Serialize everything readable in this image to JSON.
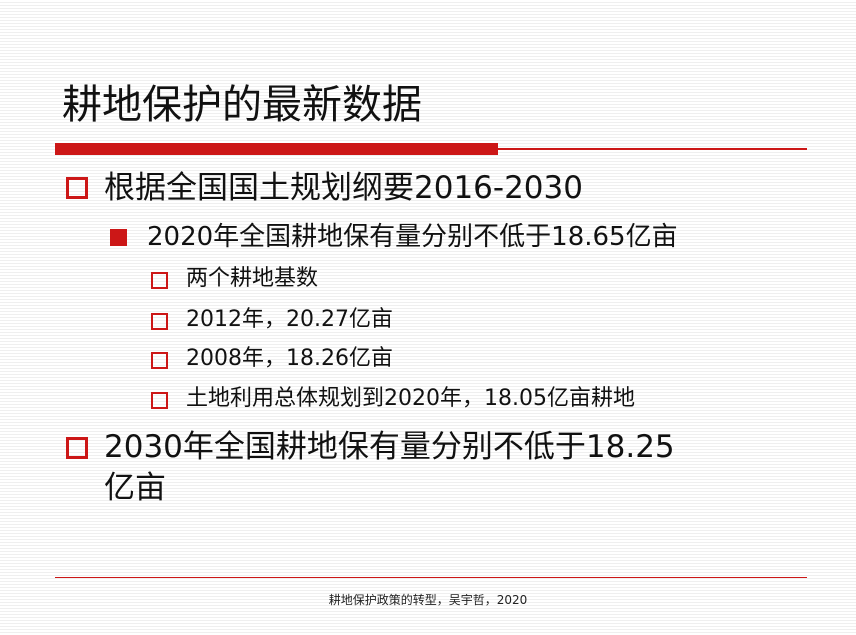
{
  "colors": {
    "accent": "#cc1717",
    "text": "#111111"
  },
  "slide": {
    "title": "耕地保护的最新数据",
    "bullets": [
      {
        "level": 1,
        "text": "根据全国国土规划纲要2016-2030"
      },
      {
        "level": 2,
        "text": "2020年全国耕地保有量分别不低于18.65亿亩"
      },
      {
        "level": 3,
        "text": "两个耕地基数"
      },
      {
        "level": 3,
        "text": "2012年，20.27亿亩"
      },
      {
        "level": 3,
        "text": "2008年，18.26亿亩"
      },
      {
        "level": 3,
        "text": "土地利用总体规划到2020年，18.05亿亩耕地"
      },
      {
        "level": 1,
        "text_line1": "2030年全国耕地保有量分别不低于18.25",
        "text_line2": "亿亩"
      }
    ]
  },
  "footer": {
    "text": "耕地保护政策的转型，吴宇哲，2020"
  }
}
